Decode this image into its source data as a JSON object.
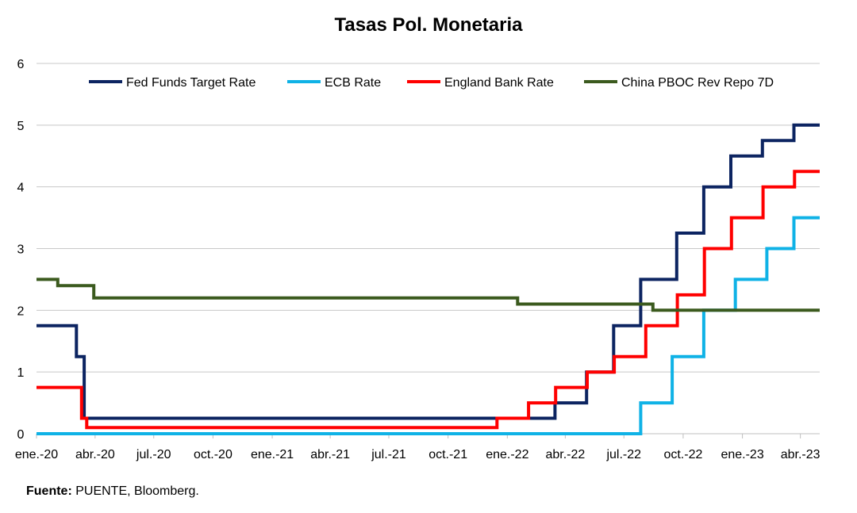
{
  "chart_data": {
    "type": "line",
    "title": "Tasas Pol. Monetaria",
    "xlabel": "",
    "ylabel": "",
    "ylim": [
      0,
      6
    ],
    "yticks": [
      0,
      1,
      2,
      3,
      4,
      5,
      6
    ],
    "xlim": [
      "2020-01-01",
      "2023-05-01"
    ],
    "xticks": [
      {
        "date": "2020-01-01",
        "label": "ene.-20"
      },
      {
        "date": "2020-04-01",
        "label": "abr.-20"
      },
      {
        "date": "2020-07-01",
        "label": "jul.-20"
      },
      {
        "date": "2020-10-01",
        "label": "oct.-20"
      },
      {
        "date": "2021-01-01",
        "label": "ene.-21"
      },
      {
        "date": "2021-04-01",
        "label": "abr.-21"
      },
      {
        "date": "2021-07-01",
        "label": "jul.-21"
      },
      {
        "date": "2021-10-01",
        "label": "oct.-21"
      },
      {
        "date": "2022-01-01",
        "label": "ene.-22"
      },
      {
        "date": "2022-04-01",
        "label": "abr.-22"
      },
      {
        "date": "2022-07-01",
        "label": "jul.-22"
      },
      {
        "date": "2022-10-01",
        "label": "oct.-22"
      },
      {
        "date": "2023-01-01",
        "label": "ene.-23"
      },
      {
        "date": "2023-04-01",
        "label": "abr.-23"
      }
    ],
    "grid": "horizontal",
    "legend_position": "top",
    "series": [
      {
        "name": "Fed Funds Target Rate",
        "color": "#0c2461",
        "points": [
          [
            "2020-01-01",
            1.75
          ],
          [
            "2020-03-03",
            1.25
          ],
          [
            "2020-03-15",
            0.25
          ],
          [
            "2022-03-16",
            0.5
          ],
          [
            "2022-05-04",
            1.0
          ],
          [
            "2022-06-15",
            1.75
          ],
          [
            "2022-07-27",
            2.5
          ],
          [
            "2022-09-21",
            3.25
          ],
          [
            "2022-11-02",
            4.0
          ],
          [
            "2022-12-14",
            4.5
          ],
          [
            "2023-02-01",
            4.75
          ],
          [
            "2023-03-22",
            5.0
          ],
          [
            "2023-05-01",
            5.0
          ]
        ]
      },
      {
        "name": "ECB Rate",
        "color": "#0fb2e6",
        "points": [
          [
            "2020-01-01",
            0.0
          ],
          [
            "2022-07-27",
            0.5
          ],
          [
            "2022-09-14",
            1.25
          ],
          [
            "2022-11-02",
            2.0
          ],
          [
            "2022-12-21",
            2.5
          ],
          [
            "2023-02-08",
            3.0
          ],
          [
            "2023-03-22",
            3.5
          ],
          [
            "2023-05-01",
            3.5
          ]
        ]
      },
      {
        "name": "England Bank Rate",
        "color": "#ff0000",
        "points": [
          [
            "2020-01-01",
            0.75
          ],
          [
            "2020-03-11",
            0.25
          ],
          [
            "2020-03-19",
            0.1
          ],
          [
            "2021-12-16",
            0.25
          ],
          [
            "2022-02-03",
            0.5
          ],
          [
            "2022-03-17",
            0.75
          ],
          [
            "2022-05-05",
            1.0
          ],
          [
            "2022-06-16",
            1.25
          ],
          [
            "2022-08-04",
            1.75
          ],
          [
            "2022-09-22",
            2.25
          ],
          [
            "2022-11-03",
            3.0
          ],
          [
            "2022-12-15",
            3.5
          ],
          [
            "2023-02-02",
            4.0
          ],
          [
            "2023-03-23",
            4.25
          ],
          [
            "2023-05-01",
            4.25
          ]
        ]
      },
      {
        "name": "China PBOC Rev Repo 7D",
        "color": "#3b5a1e",
        "points": [
          [
            "2020-01-01",
            2.5
          ],
          [
            "2020-02-03",
            2.4
          ],
          [
            "2020-03-30",
            2.2
          ],
          [
            "2022-01-17",
            2.1
          ],
          [
            "2022-08-15",
            2.0
          ],
          [
            "2023-05-01",
            2.0
          ]
        ]
      }
    ]
  },
  "source": {
    "label": "Fuente:",
    "text": " PUENTE, Bloomberg."
  }
}
